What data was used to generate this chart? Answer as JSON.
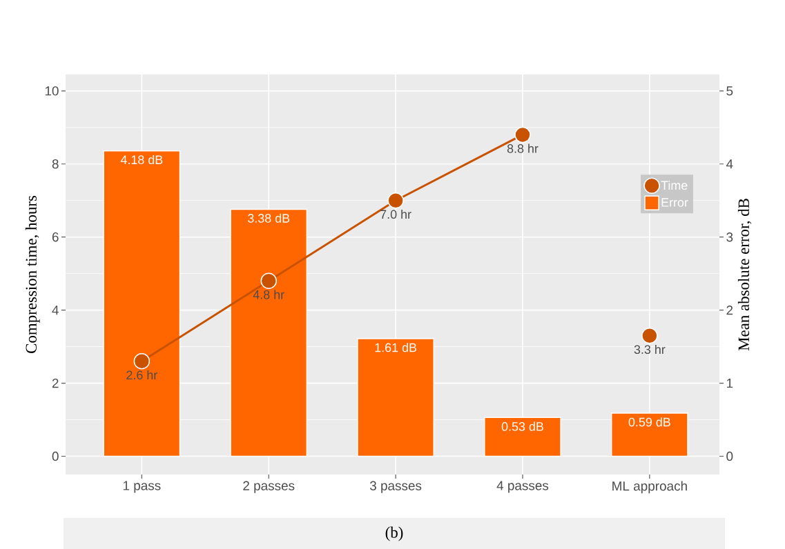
{
  "chart_data": {
    "type": "bar",
    "categories": [
      "1 pass",
      "2 passes",
      "3 passes",
      "4 passes",
      "ML approach"
    ],
    "series": [
      {
        "name": "Time",
        "type": "line",
        "color": "#c85200",
        "values": [
          2.6,
          4.8,
          7.0,
          8.8,
          null
        ],
        "value_labels": [
          "2.6 hr",
          "4.8 hr",
          "7.0 hr",
          "8.8 hr",
          null
        ]
      },
      {
        "type": "scatter",
        "color": "#c85200",
        "values": [
          null,
          null,
          null,
          null,
          3.3
        ],
        "value_labels": [
          null,
          null,
          null,
          null,
          "3.3 hr"
        ]
      },
      {
        "name": "Error",
        "axis": "y2",
        "color": "#ff6600",
        "values": [
          4.18,
          3.38,
          1.61,
          0.53,
          0.59
        ],
        "value_labels": [
          "4.18 dB",
          "3.38 dB",
          "1.61 dB",
          "0.53 dB",
          "0.59 dB"
        ]
      }
    ],
    "ylabel": "Compression time, hours",
    "y2label": "Mean absolute error, dB",
    "ylim": [
      -0.5,
      10.45
    ],
    "yticks": [
      0,
      2,
      4,
      6,
      8,
      10
    ],
    "y2lim": [
      -0.25,
      5.225
    ],
    "y2ticks": [
      0,
      1,
      2,
      3,
      4,
      5
    ],
    "grid": true,
    "legend": "top right",
    "marker": "circle",
    "annotations": [
      "(b)"
    ]
  }
}
